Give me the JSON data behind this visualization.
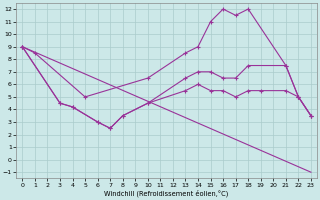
{
  "xlabel": "Windchill (Refroidissement éolien,°C)",
  "background_color": "#cce8e8",
  "grid_color": "#aacccc",
  "line_color": "#993399",
  "xlim": [
    -0.5,
    23.5
  ],
  "ylim": [
    -1.5,
    12.5
  ],
  "xticks": [
    0,
    1,
    2,
    3,
    4,
    5,
    6,
    7,
    8,
    9,
    10,
    11,
    12,
    13,
    14,
    15,
    16,
    17,
    18,
    19,
    20,
    21,
    22,
    23
  ],
  "yticks": [
    -1,
    0,
    1,
    2,
    3,
    4,
    5,
    6,
    7,
    8,
    9,
    10,
    11,
    12
  ],
  "series1_x": [
    0,
    1,
    5,
    10,
    13,
    14,
    15,
    16,
    17,
    18,
    21,
    22,
    23
  ],
  "series1_y": [
    9,
    8.5,
    5.0,
    6.5,
    8.5,
    9.0,
    11.0,
    12.0,
    11.5,
    12.0,
    7.5,
    5.0,
    3.5
  ],
  "series2_x": [
    0,
    3,
    4,
    6,
    7,
    8,
    10,
    13,
    14,
    15,
    16,
    17,
    18,
    21,
    22,
    23
  ],
  "series2_y": [
    9,
    4.5,
    4.2,
    3.0,
    2.5,
    3.5,
    4.5,
    6.5,
    7.0,
    7.0,
    6.5,
    6.5,
    7.5,
    7.5,
    5.0,
    3.5
  ],
  "series3_x": [
    0,
    3,
    4,
    6,
    7,
    8,
    10,
    13,
    14,
    15,
    16,
    17,
    18,
    19,
    21,
    22,
    23
  ],
  "series3_y": [
    9,
    4.5,
    4.2,
    3.0,
    2.5,
    3.5,
    4.5,
    5.5,
    6.0,
    5.5,
    5.5,
    5.0,
    5.5,
    5.5,
    5.5,
    5.0,
    3.5
  ],
  "series4_x": [
    0,
    23
  ],
  "series4_y": [
    9.0,
    -1.0
  ]
}
